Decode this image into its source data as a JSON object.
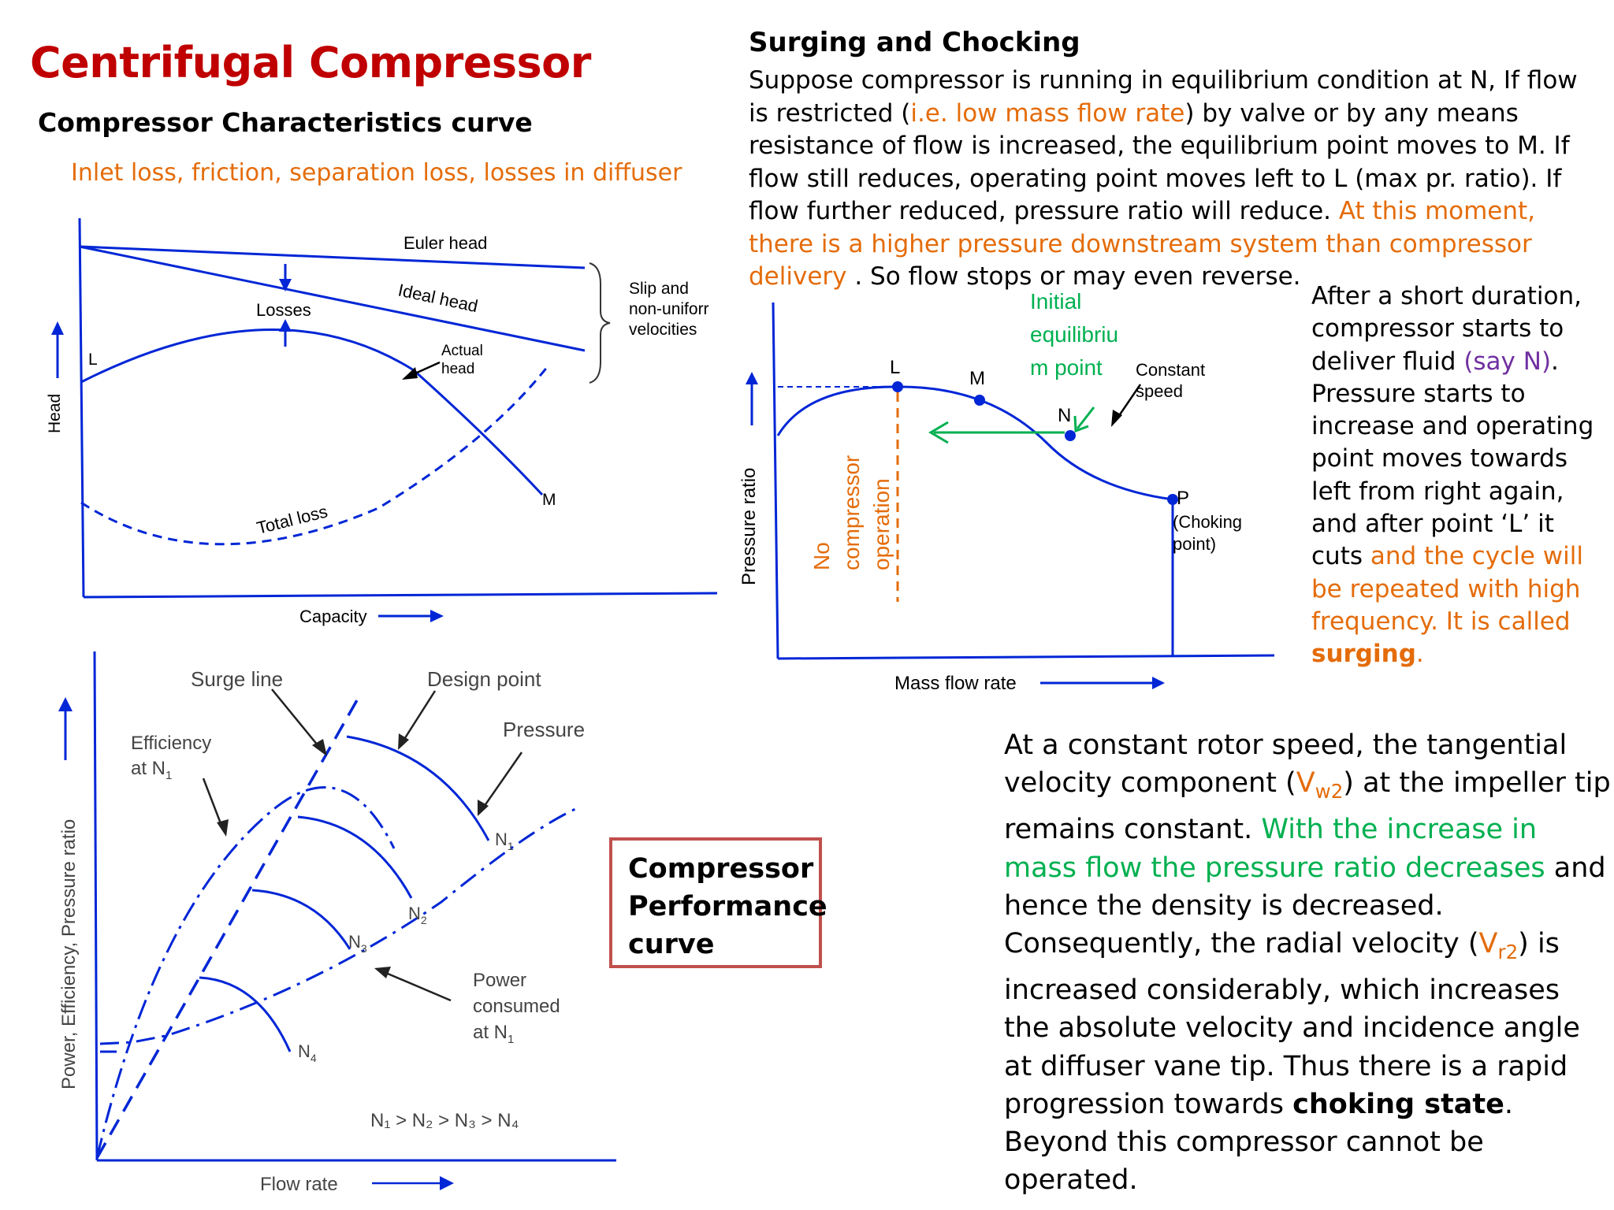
{
  "title": "Centrifugal Compressor",
  "subtitle": "Compressor Characteristics curve",
  "losses_note": "Inlet loss, friction, separation loss, losses in diffuser",
  "chart1": {
    "euler": "Euler head",
    "ideal": "Ideal head",
    "losses": "Losses",
    "slip1": "Slip and",
    "slip2": "non-uniforr",
    "slip3": "velocities",
    "actual1": "Actual",
    "actual2": "head",
    "L": "L",
    "M": "M",
    "total": "Total loss",
    "xaxis": "Capacity",
    "yaxis": "Head"
  },
  "chart2": {
    "surge": "Surge line",
    "design": "Design point",
    "pressure": "Pressure",
    "eff1": "Efficiency",
    "eff2": "at N",
    "eff_sub": "1",
    "power1": "Power",
    "power2": "consumed",
    "power3": "at N",
    "power_sub": "1",
    "n": "N",
    "s1": "1",
    "s2": "2",
    "s3": "3",
    "s4": "4",
    "ineq": "N₁ > N₂ > N₃ > N₄",
    "xaxis": "Flow rate",
    "yaxis": "Power, Efficiency, Pressure ratio"
  },
  "perf_box": [
    "Compressor",
    "Performance",
    "curve"
  ],
  "surge_heading": "Surging and Chocking",
  "surge_text": {
    "a": "Suppose compressor is running in equilibrium condition at N, If flow is restricted (",
    "b": "i.e. low mass flow rate",
    "c": ") by valve or by any means resistance of flow is increased, the equilibrium point moves to M. If flow still reduces,  operating point moves left to L (max pr. ratio). If flow further reduced, pressure ratio will reduce. ",
    "d": "At this moment, there is a higher pressure downstream system than compressor delivery",
    "e": " . So flow stops or may even reverse."
  },
  "chart3": {
    "initial1": "Initial",
    "initial2": "equilibriu",
    "initial3": "m point",
    "const1": "Constant",
    "const2": "speed",
    "L": "L",
    "M": "M",
    "N": "N",
    "P": "P",
    "choke1": "(Choking",
    "choke2": "point)",
    "no1": "No",
    "no2": "compressor",
    "no3": "operation",
    "xaxis": "Mass flow rate",
    "yaxis": "Pressure ratio"
  },
  "side_text": {
    "a": "After a short duration, compressor starts to deliver fluid ",
    "b": "(say N)",
    "c": ". Pressure starts to increase and operating point moves towards left from right again, and after point ‘L’ it cuts ",
    "d": "and the cycle will be repeated with high frequency. It is called ",
    "e": "surging",
    "f": "."
  },
  "bottom_text": {
    "a": "At a constant rotor speed, the tangential velocity component (",
    "v1": "V",
    "v1s": "w2",
    "b": ") at the impeller tip remains constant. ",
    "c": "With the increase in mass flow the pressure ratio decreases",
    "d": " and hence the density is decreased. Consequently, the radial velocity (",
    "v2": "V",
    "v2s": "r2",
    "e": ") is increased considerably, which increases the absolute velocity and incidence angle at diffuser vane tip. Thus there is a rapid progression towards ",
    "f": "choking state",
    "g": ". Beyond this compressor cannot be operated."
  },
  "colors": {
    "title": "#c00000",
    "orange": "#e46c0a",
    "green": "#00b050",
    "purple": "#7030a0",
    "blue": "#0026d6",
    "box_border": "#c0504d"
  }
}
